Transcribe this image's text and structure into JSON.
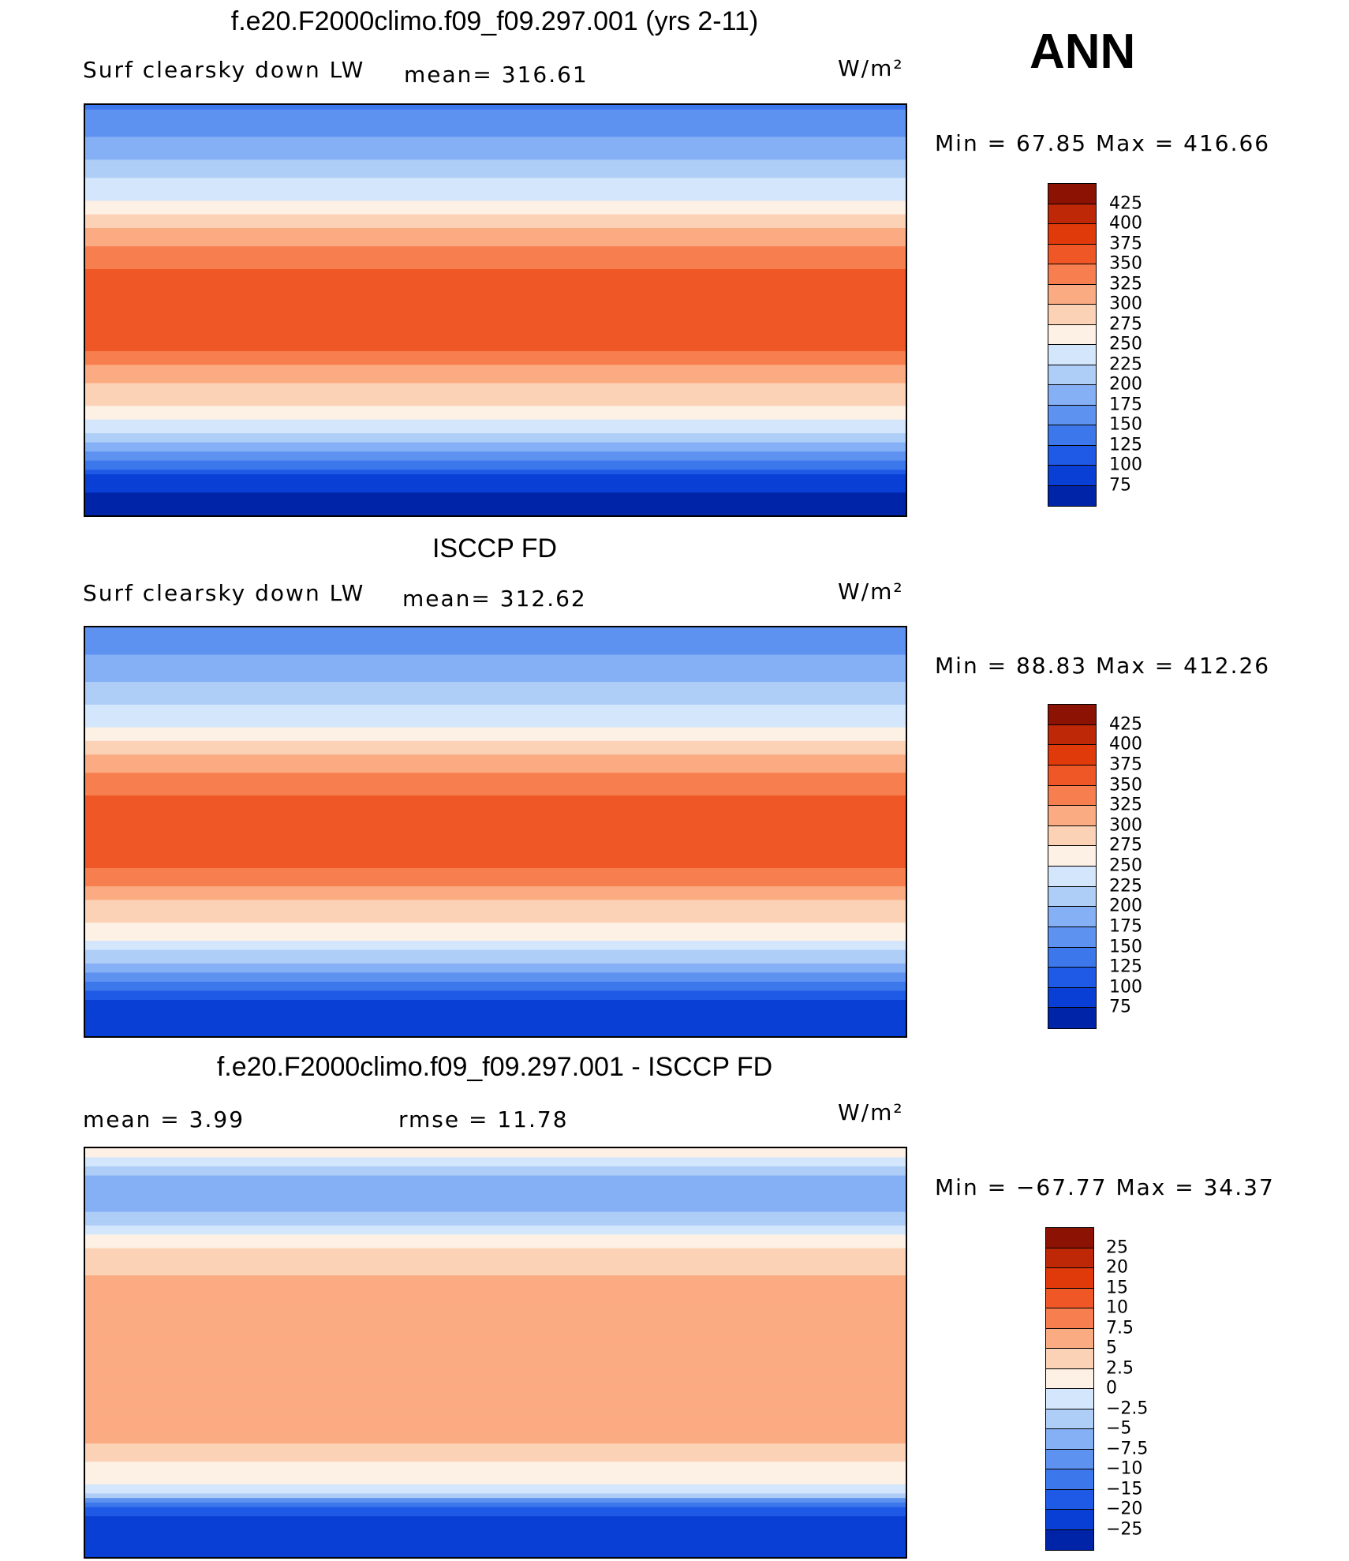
{
  "header": {
    "season": "ANN"
  },
  "colors": {
    "abs_palette": [
      "#000f73",
      "#0024a8",
      "#0a3fd6",
      "#1f5ae6",
      "#3d77ec",
      "#5e92f0",
      "#86b0f5",
      "#aecdf7",
      "#d4e6fb",
      "#fdf0e4",
      "#fcd2b6",
      "#fbab82",
      "#f77f4f",
      "#ef5826",
      "#e03a0a",
      "#bf2807",
      "#8c1204"
    ],
    "diff_palette": [
      "#000f73",
      "#0024a8",
      "#0a3fd6",
      "#1f5ae6",
      "#3d77ec",
      "#5e92f0",
      "#86b0f5",
      "#aecdf7",
      "#d4e6fb",
      "#fdf0e4",
      "#fcd2b6",
      "#fbab82",
      "#f77f4f",
      "#ef5826",
      "#e03a0a",
      "#bf2807",
      "#8c1204"
    ]
  },
  "panels": [
    {
      "title": "f.e20.F2000climo.f09_f09.297.001 (yrs 2-11)",
      "left_label": "Surf clearsky down LW",
      "stat_label": "mean= 316.61",
      "units": "W/m²",
      "minmax": "Min =   67.85 Max =  416.66"
    },
    {
      "title": "ISCCP FD",
      "left_label": "Surf clearsky down LW",
      "stat_label": "mean= 312.62",
      "units": "W/m²",
      "minmax": "Min =   88.83 Max =  412.26"
    },
    {
      "title": "f.e20.F2000climo.f09_f09.297.001 - ISCCP FD",
      "left_label": "mean =    3.99",
      "stat_label": "rmse =   11.78",
      "units": "W/m²",
      "minmax": "Min = −67.77 Max =   34.37"
    }
  ],
  "chart_data": [
    {
      "type": "heatmap",
      "title": "f.e20.F2000climo.f09_f09.297.001 (yrs 2-11)",
      "variable": "Surf clearsky down LW",
      "units": "W/m²",
      "mean": 316.61,
      "min": 67.85,
      "max": 416.66,
      "colorbar_levels": [
        "425",
        "400",
        "375",
        "350",
        "325",
        "300",
        "275",
        "250",
        "225",
        "200",
        "175",
        "150",
        "125",
        "100",
        "75"
      ],
      "latitude_profile": [
        [
          90,
          170
        ],
        [
          75,
          200
        ],
        [
          60,
          245
        ],
        [
          45,
          285
        ],
        [
          30,
          345
        ],
        [
          15,
          385
        ],
        [
          0,
          400
        ],
        [
          -15,
          385
        ],
        [
          -30,
          330
        ],
        [
          -45,
          290
        ],
        [
          -60,
          220
        ],
        [
          -75,
          110
        ],
        [
          -90,
          80
        ]
      ]
    },
    {
      "type": "heatmap",
      "title": "ISCCP FD",
      "variable": "Surf clearsky down LW",
      "units": "W/m²",
      "mean": 312.62,
      "min": 88.83,
      "max": 412.26,
      "colorbar_levels": [
        "425",
        "400",
        "375",
        "350",
        "325",
        "300",
        "275",
        "250",
        "225",
        "200",
        "175",
        "150",
        "125",
        "100",
        "75"
      ],
      "latitude_profile": [
        [
          90,
          180
        ],
        [
          75,
          205
        ],
        [
          60,
          240
        ],
        [
          45,
          280
        ],
        [
          30,
          340
        ],
        [
          15,
          380
        ],
        [
          0,
          400
        ],
        [
          -15,
          380
        ],
        [
          -30,
          325
        ],
        [
          -45,
          285
        ],
        [
          -60,
          210
        ],
        [
          -75,
          120
        ],
        [
          -90,
          100
        ]
      ]
    },
    {
      "type": "heatmap",
      "title": "f.e20.F2000climo.f09_f09.297.001 - ISCCP FD",
      "units": "W/m²",
      "mean": 3.99,
      "rmse": 11.78,
      "min": -67.77,
      "max": 34.37,
      "colorbar_levels": [
        "25",
        "20",
        "15",
        "10",
        "7.5",
        "5",
        "2.5",
        "0",
        "−2.5",
        "−5",
        "−7.5",
        "−10",
        "−15",
        "−20",
        "−25"
      ],
      "latitude_profile": [
        [
          90,
          5
        ],
        [
          75,
          -5
        ],
        [
          60,
          -2
        ],
        [
          45,
          6
        ],
        [
          30,
          8
        ],
        [
          15,
          9
        ],
        [
          0,
          8
        ],
        [
          -15,
          9
        ],
        [
          -30,
          10
        ],
        [
          -45,
          6
        ],
        [
          -60,
          2
        ],
        [
          -75,
          -20
        ],
        [
          -90,
          -20
        ]
      ]
    }
  ]
}
